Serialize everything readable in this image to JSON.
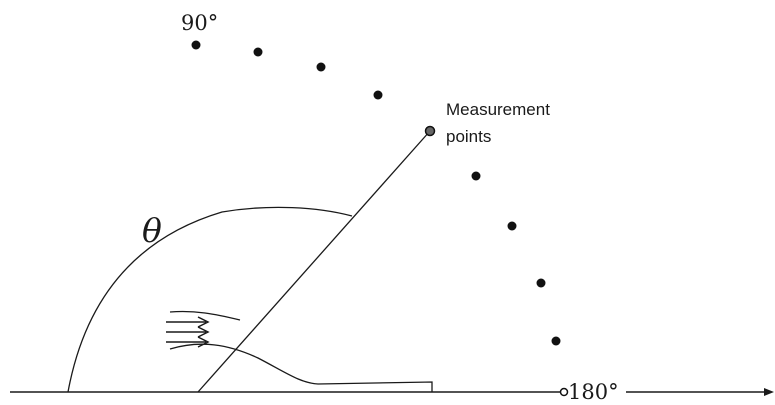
{
  "labels": {
    "angle_top": "90°",
    "angle_end": "180°",
    "theta": "θ",
    "measurement_line1": "Measurement",
    "measurement_line2": "points"
  },
  "colors": {
    "stroke": "#1a1a1a",
    "dot": "#111111",
    "highlight_dot": "#555555",
    "background": "#ffffff"
  },
  "icons": {
    "flow_arrows": "triple-right-arrow",
    "axis_arrow": "arrow-right"
  }
}
